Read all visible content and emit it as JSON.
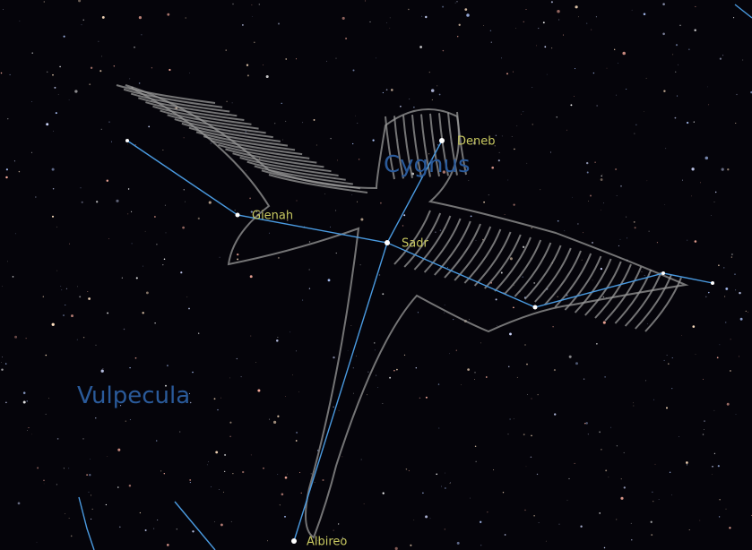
{
  "constellations": [
    {
      "name": "Cygnus"
    },
    {
      "name": "Vulpecula"
    }
  ],
  "stars": [
    {
      "name": "Deneb"
    },
    {
      "name": "Sadr"
    },
    {
      "name": "Gienah"
    },
    {
      "name": "Albireo"
    }
  ]
}
